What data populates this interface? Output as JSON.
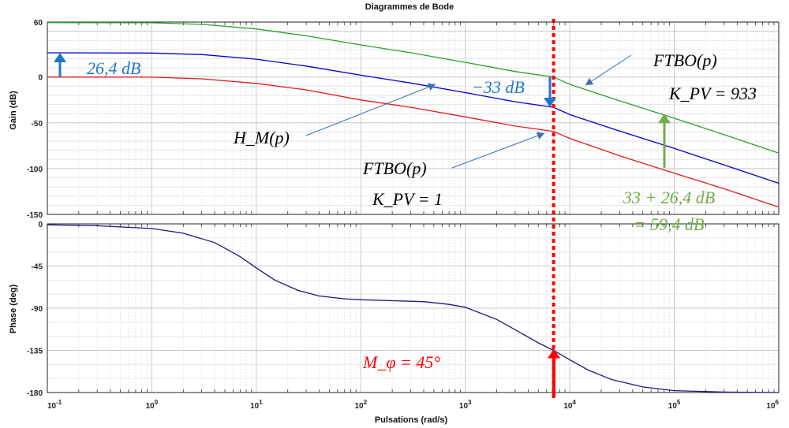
{
  "chart_data": [
    {
      "type": "line",
      "panel": "gain",
      "title": "Diagrammes de Bode",
      "ylabel": "Gain (dB)",
      "xscale": "log",
      "xlim": [
        0.1,
        1000000
      ],
      "ylim": [
        -150,
        60
      ],
      "yticks": [
        "60",
        "0",
        "-50",
        "-100",
        "-150"
      ],
      "ytick_values": [
        60,
        0,
        -50,
        -100,
        -150
      ],
      "grid": true,
      "colors": {
        "green": "#2ca02c",
        "blue": "#0000cc",
        "red": "#e41a1c"
      },
      "series": [
        {
          "color": "#2ca02c",
          "x": [
            0.1,
            1,
            3,
            10,
            30,
            100,
            300,
            1000,
            3000,
            7000,
            10000,
            30000,
            100000,
            300000,
            1000000
          ],
          "y": [
            59.4,
            59.2,
            57.5,
            52.5,
            45,
            35,
            26.5,
            16,
            6,
            0,
            -8,
            -26,
            -45,
            -63,
            -83
          ]
        },
        {
          "color": "#0000cc",
          "x": [
            0.1,
            1,
            3,
            10,
            30,
            100,
            300,
            1000,
            3000,
            7000,
            10000,
            30000,
            100000,
            300000,
            1000000
          ],
          "y": [
            26.4,
            26.2,
            24.5,
            19.5,
            12,
            2,
            -6.5,
            -17,
            -27,
            -33,
            -41,
            -59,
            -78,
            -96,
            -116
          ]
        },
        {
          "color": "#e41a1c",
          "x": [
            0.1,
            1,
            3,
            10,
            30,
            100,
            300,
            1000,
            3000,
            7000,
            10000,
            30000,
            100000,
            300000,
            1000000
          ],
          "y": [
            0,
            -0.2,
            -2,
            -7,
            -14,
            -25,
            -33,
            -43.5,
            -53.5,
            -59.4,
            -67,
            -86,
            -105,
            -122,
            -142
          ]
        }
      ],
      "annotations": {
        "gain_blue": "26,4 dB",
        "margin_shift": "−33 dB",
        "ftbo_high": "FTBO(p)",
        "kpv_high": "K_PV = 933",
        "hm": "H_M(p)",
        "ftbo_low": "FTBO(p)",
        "kpv_low": "K_PV = 1",
        "sum_line1": "33 + 26,4 dB",
        "sum_line2": "= 59,4 dB"
      }
    },
    {
      "type": "line",
      "panel": "phase",
      "ylabel": "Phase (deg)",
      "xlabel": "Pulsations  (rad/s)",
      "xscale": "log",
      "xlim": [
        0.1,
        1000000
      ],
      "ylim": [
        -180,
        0
      ],
      "yticks": [
        "0",
        "-45",
        "-90",
        "-135",
        "-180"
      ],
      "ytick_values": [
        0,
        -45,
        -90,
        -135,
        -180
      ],
      "xticks": [
        "10",
        "10",
        "10",
        "10",
        "10",
        "10",
        "10",
        "10"
      ],
      "xtick_exponents": [
        "-1",
        "0",
        "1",
        "2",
        "3",
        "4",
        "5",
        "6"
      ],
      "xtick_values": [
        0.1,
        1,
        10,
        100,
        1000,
        10000,
        100000,
        1000000
      ],
      "grid": true,
      "series": [
        {
          "color": "#1a1a80",
          "x": [
            0.1,
            0.3,
            1,
            2,
            4,
            7,
            10,
            15,
            25,
            40,
            70,
            100,
            200,
            400,
            700,
            1000,
            2000,
            3000,
            5000,
            7000,
            10000,
            15000,
            25000,
            50000,
            100000,
            300000,
            1000000
          ],
          "y": [
            -1,
            -2,
            -5,
            -10,
            -20,
            -35,
            -47,
            -60,
            -71,
            -77,
            -80,
            -81,
            -82,
            -83,
            -86,
            -89,
            -102,
            -113,
            -127,
            -135,
            -145,
            -156,
            -166,
            -174,
            -178,
            -179.5,
            -180
          ]
        }
      ],
      "annotations": {
        "phase_margin": "M_φ = 45°"
      }
    }
  ],
  "crossover": {
    "x": 7000,
    "color": "#ff0000"
  }
}
